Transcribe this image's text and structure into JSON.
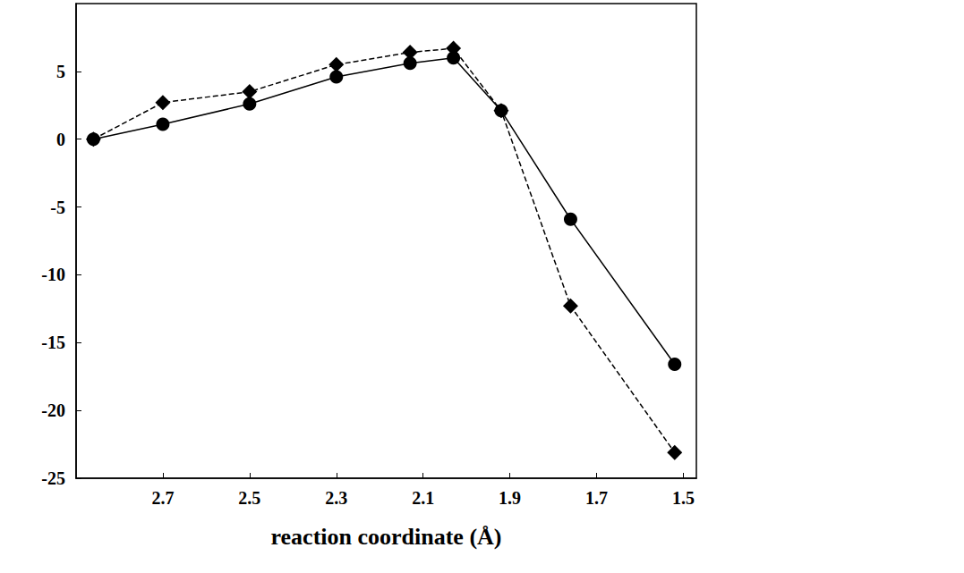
{
  "chart_data": {
    "type": "line",
    "x_label": "reaction coordinate (Å)",
    "x": [
      2.86,
      2.7,
      2.5,
      2.3,
      2.13,
      2.03,
      1.92,
      1.76,
      1.52
    ],
    "xlim": [
      2.9,
      1.47
    ],
    "xticks": [
      2.7,
      2.5,
      2.3,
      2.1,
      1.9,
      1.7,
      1.5
    ],
    "ylim": [
      -25,
      10
    ],
    "yticks": [
      -25,
      -20,
      -15,
      -10,
      -5,
      0,
      5
    ],
    "grid": false,
    "series": [
      {
        "color": "#000000",
        "marker": "circle",
        "line_style": "solid",
        "values": [
          0,
          1.1,
          2.6,
          4.6,
          5.6,
          6.0,
          2.1,
          -5.9,
          -16.6
        ]
      },
      {
        "color": "#000000",
        "marker": "diamond",
        "line_style": "dashed",
        "values": [
          0,
          2.7,
          3.5,
          5.5,
          6.4,
          6.7,
          2.1,
          -12.3,
          -23.1
        ]
      }
    ]
  }
}
